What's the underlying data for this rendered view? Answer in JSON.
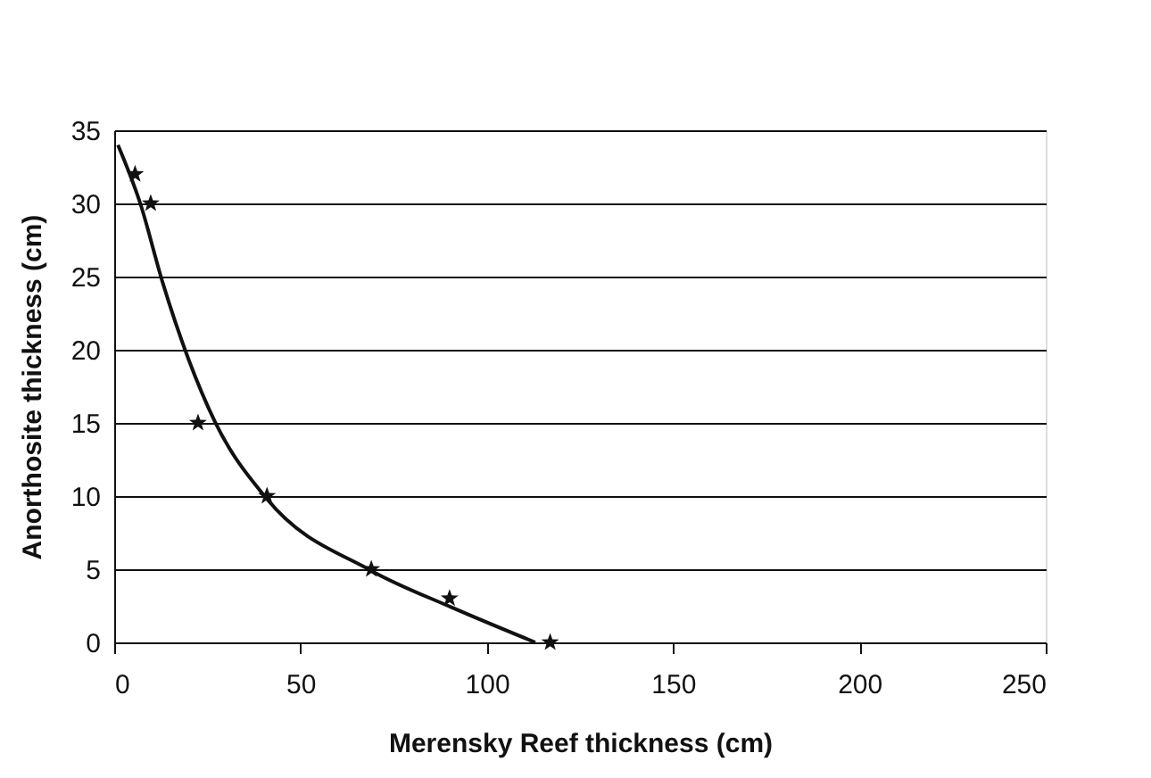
{
  "chart_data": {
    "type": "scatter",
    "xlabel": "Merensky Reef thickness (cm)",
    "ylabel": "Anorthosite thickness (cm)",
    "xlim": [
      0,
      250
    ],
    "xticks": [
      0,
      50,
      100,
      150,
      200,
      250
    ],
    "ylim": [
      0,
      35
    ],
    "yticks": [
      0,
      5,
      10,
      15,
      20,
      25,
      30,
      35
    ],
    "grid": "y",
    "marker": "star",
    "series": [
      {
        "color": "#111111",
        "x": [
          5.6,
          9.8,
          22.5,
          41,
          69,
          90,
          117
        ],
        "values": [
          32,
          30,
          15,
          10,
          5,
          3,
          0
        ]
      },
      {
        "type": "line",
        "marker": "none",
        "line_style": "solid",
        "color": "#111111",
        "x": [
          1,
          7,
          13,
          27,
          41,
          69,
          90.5,
          113
        ],
        "values": [
          34,
          30,
          24.6,
          15.1,
          9.8,
          4.9,
          2.4,
          0
        ]
      }
    ]
  }
}
